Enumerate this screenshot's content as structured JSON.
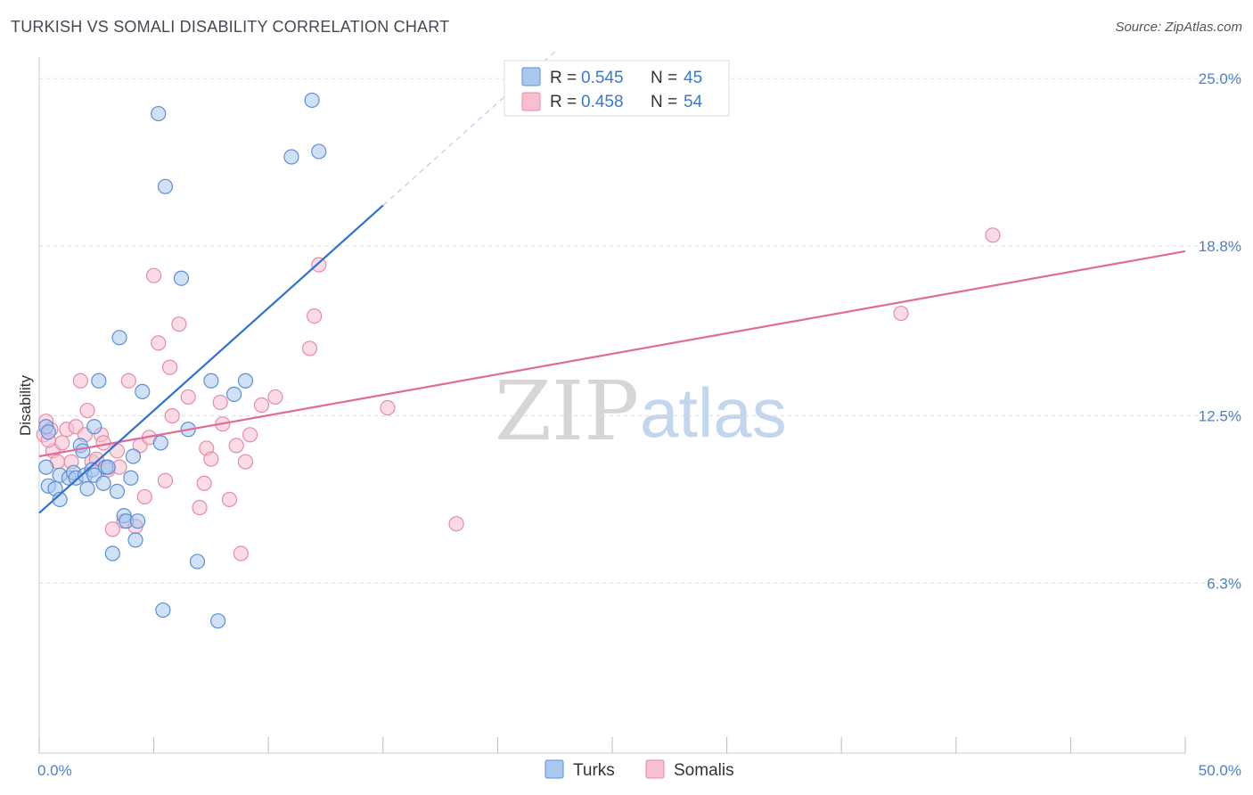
{
  "header": {
    "title": "TURKISH VS SOMALI DISABILITY CORRELATION CHART",
    "source": "Source: ZipAtlas.com"
  },
  "watermark": {
    "zip": "ZIP",
    "atlas": "atlas"
  },
  "colors": {
    "turks_fill": "#aac8ef",
    "turks_stroke": "#5a8fd8",
    "turks_line": "#2f72d1",
    "somalis_fill": "#f7bfd0",
    "somalis_stroke": "#e88aa6",
    "somalis_line": "#e06c95",
    "grid": "#dcdcdc",
    "axis_text": "#4a7fd0"
  },
  "legend": {
    "rows": [
      {
        "r_label": "R = ",
        "r_value": "0.545",
        "n_label": "N = ",
        "n_value": "45"
      },
      {
        "r_label": "R = ",
        "r_value": "0.458",
        "n_label": "N = ",
        "n_value": "54"
      }
    ]
  },
  "chart_data": {
    "type": "scatter",
    "title": "TURKISH VS SOMALI DISABILITY CORRELATION CHART",
    "xlabel": "",
    "ylabel": "Disability",
    "xlim": [
      0,
      50
    ],
    "ylim": [
      0,
      25.8
    ],
    "x_tick_labels": [
      {
        "value": 0,
        "label": "0.0%"
      },
      {
        "value": 50,
        "label": "50.0%"
      }
    ],
    "y_tick_labels": [
      {
        "value": 25.0,
        "label": "25.0%"
      },
      {
        "value": 18.8,
        "label": "18.8%"
      },
      {
        "value": 12.5,
        "label": "12.5%"
      },
      {
        "value": 6.3,
        "label": "6.3%"
      }
    ],
    "x_minor_ticks": [
      0,
      5,
      10,
      15,
      20,
      25,
      30,
      35,
      40,
      45,
      50
    ],
    "series": [
      {
        "name": "Turks",
        "r": 0.545,
        "n": 45,
        "trend": {
          "x": [
            0,
            15
          ],
          "y": [
            8.9,
            20.3
          ]
        },
        "trend_extension": {
          "x": [
            15,
            22.5
          ],
          "y": [
            20.3,
            26.0
          ]
        },
        "points": [
          {
            "x": 0.3,
            "y": 12.1
          },
          {
            "x": 0.3,
            "y": 10.6
          },
          {
            "x": 0.4,
            "y": 9.9
          },
          {
            "x": 0.7,
            "y": 9.8
          },
          {
            "x": 0.9,
            "y": 10.3
          },
          {
            "x": 0.9,
            "y": 9.4
          },
          {
            "x": 1.3,
            "y": 10.2
          },
          {
            "x": 1.5,
            "y": 10.4
          },
          {
            "x": 1.6,
            "y": 10.2
          },
          {
            "x": 1.8,
            "y": 11.4
          },
          {
            "x": 1.9,
            "y": 11.2
          },
          {
            "x": 2.0,
            "y": 10.3
          },
          {
            "x": 2.1,
            "y": 9.8
          },
          {
            "x": 2.3,
            "y": 10.5
          },
          {
            "x": 2.4,
            "y": 10.3
          },
          {
            "x": 2.4,
            "y": 12.1
          },
          {
            "x": 2.6,
            "y": 13.8
          },
          {
            "x": 2.9,
            "y": 10.6
          },
          {
            "x": 3.0,
            "y": 10.6
          },
          {
            "x": 2.8,
            "y": 10.0
          },
          {
            "x": 3.2,
            "y": 7.4
          },
          {
            "x": 3.4,
            "y": 9.7
          },
          {
            "x": 3.5,
            "y": 15.4
          },
          {
            "x": 3.7,
            "y": 8.8
          },
          {
            "x": 3.8,
            "y": 8.6
          },
          {
            "x": 4.0,
            "y": 10.2
          },
          {
            "x": 4.1,
            "y": 11.0
          },
          {
            "x": 4.2,
            "y": 7.9
          },
          {
            "x": 4.3,
            "y": 8.6
          },
          {
            "x": 4.5,
            "y": 13.4
          },
          {
            "x": 5.2,
            "y": 23.7
          },
          {
            "x": 5.3,
            "y": 11.5
          },
          {
            "x": 5.4,
            "y": 5.3
          },
          {
            "x": 5.5,
            "y": 21.0
          },
          {
            "x": 6.2,
            "y": 17.6
          },
          {
            "x": 6.5,
            "y": 12.0
          },
          {
            "x": 6.9,
            "y": 7.1
          },
          {
            "x": 7.5,
            "y": 13.8
          },
          {
            "x": 7.8,
            "y": 4.9
          },
          {
            "x": 8.5,
            "y": 13.3
          },
          {
            "x": 9.0,
            "y": 13.8
          },
          {
            "x": 11.0,
            "y": 22.1
          },
          {
            "x": 11.9,
            "y": 24.2
          },
          {
            "x": 12.2,
            "y": 22.3
          },
          {
            "x": 0.4,
            "y": 11.9
          }
        ]
      },
      {
        "name": "Somalis",
        "r": 0.458,
        "n": 54,
        "trend": {
          "x": [
            0,
            50
          ],
          "y": [
            11.0,
            18.6
          ]
        },
        "points": [
          {
            "x": 0.2,
            "y": 11.8
          },
          {
            "x": 0.3,
            "y": 12.3
          },
          {
            "x": 0.5,
            "y": 12.0
          },
          {
            "x": 0.6,
            "y": 11.2
          },
          {
            "x": 0.8,
            "y": 10.8
          },
          {
            "x": 1.0,
            "y": 11.5
          },
          {
            "x": 1.2,
            "y": 12.0
          },
          {
            "x": 1.4,
            "y": 10.8
          },
          {
            "x": 1.6,
            "y": 12.1
          },
          {
            "x": 1.8,
            "y": 13.8
          },
          {
            "x": 2.0,
            "y": 11.8
          },
          {
            "x": 2.1,
            "y": 12.7
          },
          {
            "x": 2.3,
            "y": 10.8
          },
          {
            "x": 2.5,
            "y": 10.9
          },
          {
            "x": 2.7,
            "y": 11.8
          },
          {
            "x": 2.8,
            "y": 11.5
          },
          {
            "x": 3.0,
            "y": 10.5
          },
          {
            "x": 3.2,
            "y": 8.3
          },
          {
            "x": 3.4,
            "y": 11.2
          },
          {
            "x": 3.5,
            "y": 10.6
          },
          {
            "x": 3.7,
            "y": 8.6
          },
          {
            "x": 3.9,
            "y": 13.8
          },
          {
            "x": 4.2,
            "y": 8.4
          },
          {
            "x": 4.4,
            "y": 11.4
          },
          {
            "x": 4.6,
            "y": 9.5
          },
          {
            "x": 4.8,
            "y": 11.7
          },
          {
            "x": 5.0,
            "y": 17.7
          },
          {
            "x": 5.2,
            "y": 15.2
          },
          {
            "x": 5.5,
            "y": 10.1
          },
          {
            "x": 5.7,
            "y": 14.3
          },
          {
            "x": 5.8,
            "y": 12.5
          },
          {
            "x": 6.1,
            "y": 15.9
          },
          {
            "x": 6.5,
            "y": 13.2
          },
          {
            "x": 7.0,
            "y": 9.1
          },
          {
            "x": 7.2,
            "y": 10.0
          },
          {
            "x": 7.3,
            "y": 11.3
          },
          {
            "x": 7.5,
            "y": 10.9
          },
          {
            "x": 7.9,
            "y": 13.0
          },
          {
            "x": 8.0,
            "y": 12.2
          },
          {
            "x": 8.3,
            "y": 9.4
          },
          {
            "x": 8.6,
            "y": 11.4
          },
          {
            "x": 8.8,
            "y": 7.4
          },
          {
            "x": 9.0,
            "y": 10.8
          },
          {
            "x": 9.2,
            "y": 11.8
          },
          {
            "x": 9.7,
            "y": 12.9
          },
          {
            "x": 10.3,
            "y": 13.2
          },
          {
            "x": 11.8,
            "y": 15.0
          },
          {
            "x": 12.0,
            "y": 16.2
          },
          {
            "x": 12.2,
            "y": 18.1
          },
          {
            "x": 15.2,
            "y": 12.8
          },
          {
            "x": 18.2,
            "y": 8.5
          },
          {
            "x": 37.6,
            "y": 16.3
          },
          {
            "x": 41.6,
            "y": 19.2
          },
          {
            "x": 0.4,
            "y": 11.6
          }
        ]
      }
    ],
    "legend_position": "top-center"
  }
}
